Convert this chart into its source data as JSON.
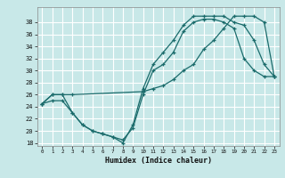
{
  "xlabel": "Humidex (Indice chaleur)",
  "bg_color": "#c8e8e8",
  "line_color": "#1a6b6b",
  "grid_color": "#ffffff",
  "ylim": [
    17.5,
    40
  ],
  "xlim": [
    -0.5,
    23.5
  ],
  "yticks": [
    18,
    20,
    22,
    24,
    26,
    28,
    30,
    32,
    34,
    36,
    38
  ],
  "xticks": [
    0,
    1,
    2,
    3,
    4,
    5,
    6,
    7,
    8,
    9,
    10,
    11,
    12,
    13,
    14,
    15,
    16,
    17,
    18,
    19,
    20,
    21,
    22,
    23
  ],
  "line1_x": [
    0,
    1,
    2,
    3,
    4,
    5,
    6,
    7,
    8,
    9,
    10,
    11,
    12,
    13,
    14,
    15,
    16,
    17,
    18,
    19,
    20,
    21,
    22,
    23
  ],
  "line1_y": [
    24.5,
    26,
    26,
    23,
    21,
    20,
    19.5,
    19,
    18,
    21,
    27,
    31,
    33,
    35,
    37.5,
    39,
    39,
    39,
    39,
    38,
    37.5,
    35,
    31,
    29
  ],
  "line2_x": [
    0,
    1,
    2,
    3,
    10,
    11,
    12,
    13,
    14,
    15,
    16,
    17,
    18,
    19,
    20,
    21,
    22,
    23
  ],
  "line2_y": [
    24.5,
    26,
    26,
    26,
    26.5,
    27,
    27.5,
    28.5,
    30,
    31,
    33.5,
    35,
    37,
    39,
    39,
    39,
    38,
    29
  ],
  "line3_x": [
    0,
    1,
    2,
    3,
    4,
    5,
    6,
    7,
    8,
    9,
    10,
    11,
    12,
    13,
    14,
    15,
    16,
    17,
    18,
    19,
    20,
    21,
    22,
    23
  ],
  "line3_y": [
    24.5,
    25,
    25,
    23,
    21,
    20,
    19.5,
    19,
    18.5,
    20.5,
    26,
    30,
    31,
    33,
    36.5,
    38,
    38.5,
    38.5,
    38,
    37,
    32,
    30,
    29,
    29
  ]
}
